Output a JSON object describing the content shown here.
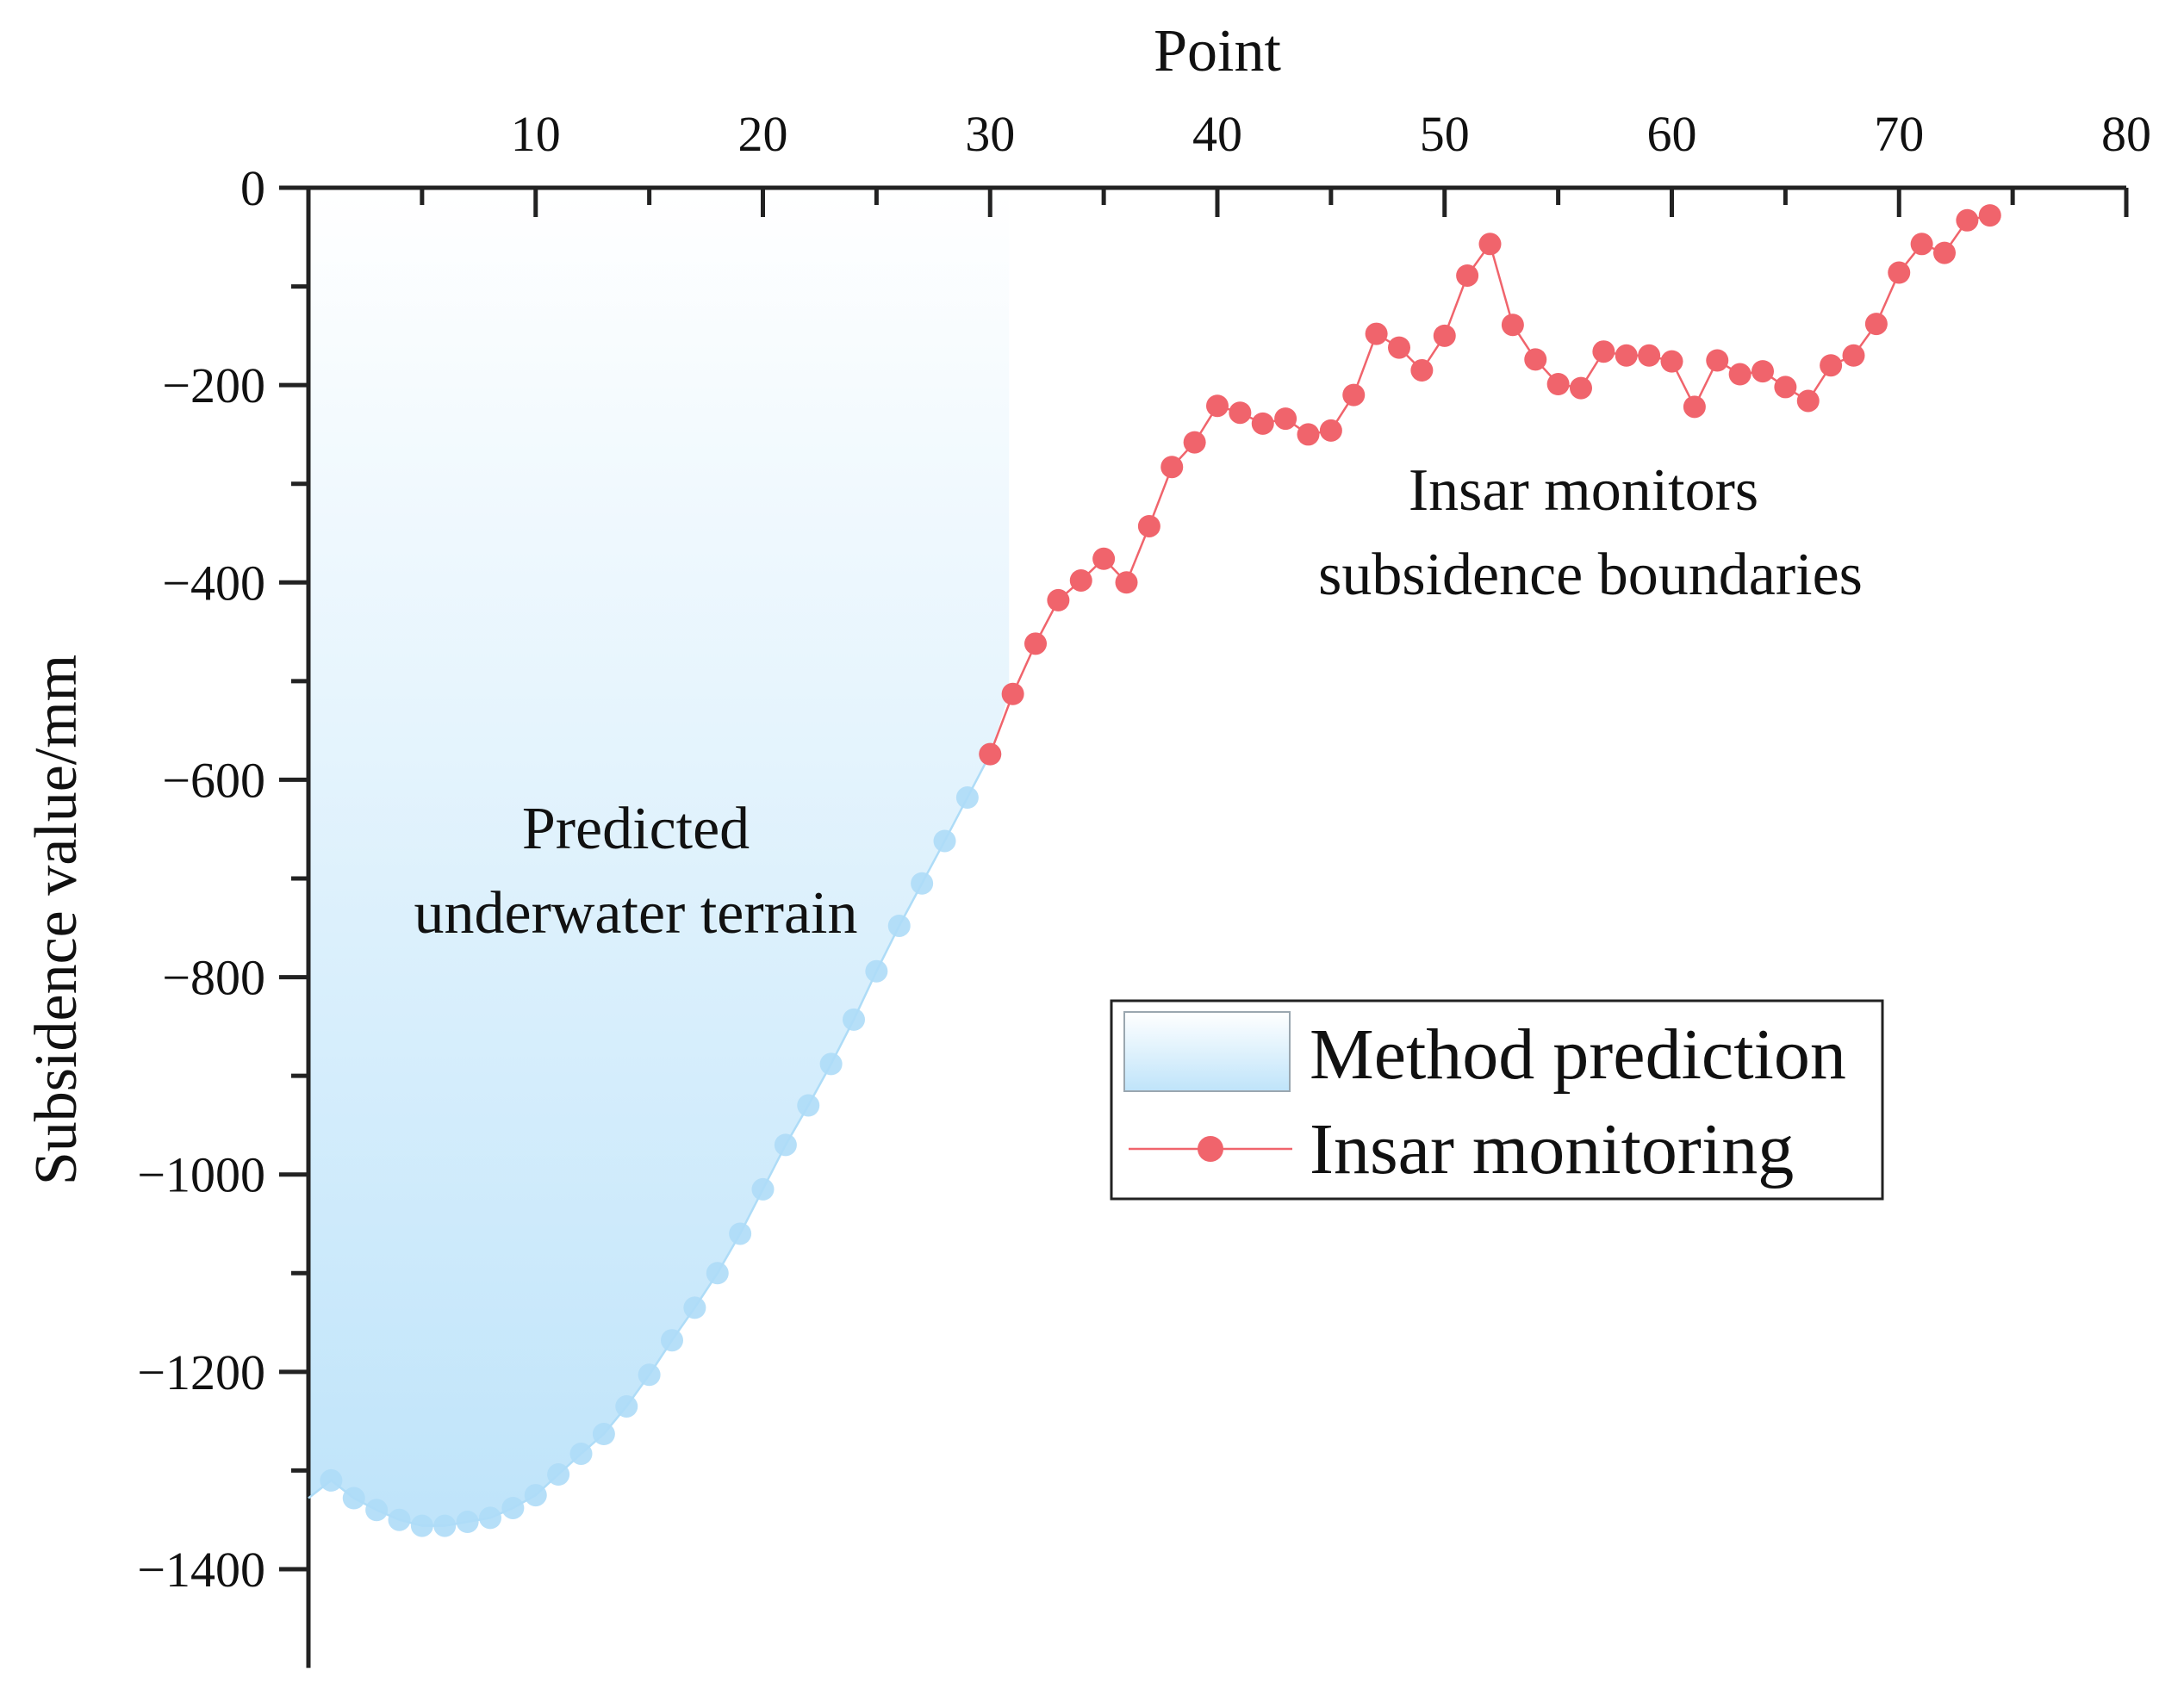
{
  "chart_data": {
    "type": "line",
    "title": "",
    "xlabel": "Point",
    "ylabel": "Subsidence value/mm",
    "xlim": [
      0,
      80
    ],
    "ylim": [
      -1500,
      0
    ],
    "x_ticks": [
      "10",
      "20",
      "30",
      "40",
      "50",
      "60",
      "70",
      "80"
    ],
    "x_tick_values": [
      10,
      20,
      30,
      40,
      50,
      60,
      70,
      80
    ],
    "y_ticks": [
      "0",
      "-200",
      "-400",
      "-600",
      "-800",
      "-1000",
      "-1200",
      "-1400"
    ],
    "y_tick_values": [
      0,
      -200,
      -400,
      -600,
      -800,
      -1000,
      -1200,
      -1400
    ],
    "x_axis_position": "top",
    "grid": false,
    "legend_position": "center-right",
    "series": [
      {
        "name": "Method prediction",
        "style": "area",
        "color": "#aedcf7",
        "fill_top": "#ffffff",
        "fill_bottom": "#bfe4fa",
        "x": [
          1,
          2,
          3,
          4,
          5,
          6,
          7,
          8,
          9,
          10,
          11,
          12,
          13,
          14,
          15,
          16,
          17,
          18,
          19,
          20,
          21,
          22,
          23,
          24,
          25,
          26,
          27,
          28,
          29,
          30
        ],
        "values": [
          -1310,
          -1328,
          -1340,
          -1350,
          -1356,
          -1356,
          -1352,
          -1348,
          -1338,
          -1325,
          -1304,
          -1283,
          -1263,
          -1235,
          -1203,
          -1168,
          -1135,
          -1100,
          -1060,
          -1015,
          -970,
          -930,
          -888,
          -843,
          -794,
          -748,
          -705,
          -662,
          -618,
          -574
        ]
      },
      {
        "name": "Insar monitoring",
        "style": "line+marker",
        "color": "#f0646c",
        "x": [
          30,
          31,
          32,
          33,
          34,
          35,
          36,
          37,
          38,
          39,
          40,
          41,
          42,
          43,
          44,
          45,
          46,
          47,
          48,
          49,
          50,
          51,
          52,
          53,
          54,
          55,
          56,
          57,
          58,
          59,
          60,
          61,
          62,
          63,
          64,
          65,
          66,
          67,
          68,
          69,
          70,
          71,
          72,
          73,
          74
        ],
        "values": [
          -574,
          -513,
          -462,
          -418,
          -398,
          -376,
          -400,
          -343,
          -283,
          -258,
          -221,
          -228,
          -239,
          -234,
          -250,
          -246,
          -210,
          -148,
          -162,
          -185,
          -150,
          -89,
          -57,
          -139,
          -174,
          -199,
          -203,
          -166,
          -170,
          -170,
          -176,
          -222,
          -175,
          -189,
          -186,
          -202,
          -216,
          -180,
          -170,
          -138,
          -86,
          -57,
          -66,
          -33,
          -28
        ]
      }
    ],
    "annotations": [
      {
        "lines": [
          "Predicted",
          "underwater terrain"
        ]
      },
      {
        "lines": [
          "Insar monitors",
          "subsidence boundaries"
        ]
      }
    ]
  }
}
